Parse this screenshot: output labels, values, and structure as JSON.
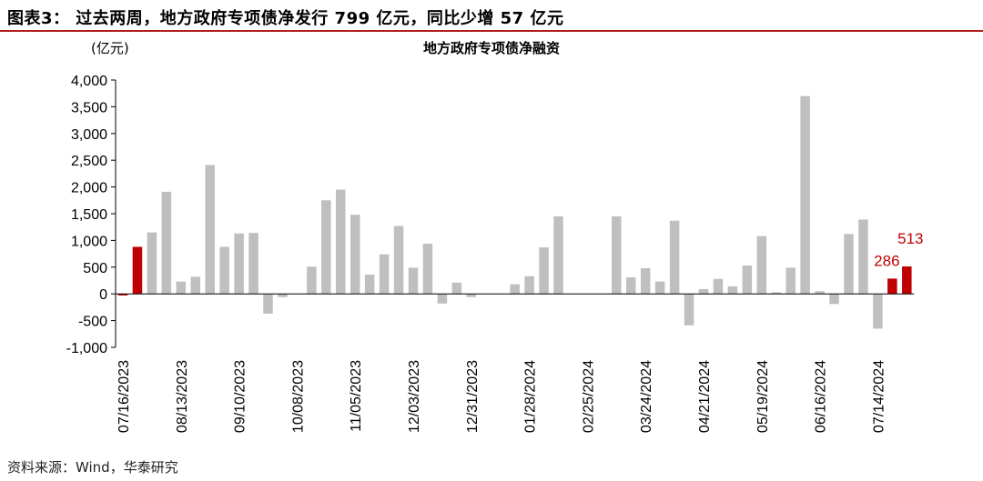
{
  "figure_title": "图表3：  过去两周，地方政府专项债净发行 799 亿元，同比少增 57 亿元",
  "unit_label": "(亿元)",
  "source": "资料来源：Wind，华泰研究",
  "colors": {
    "gray_bar": "#bfbfbf",
    "highlight_bar": "#c00000",
    "rule": "#b01c1c"
  },
  "chart_data": {
    "type": "bar",
    "title": "地方政府专项债净融资",
    "xlabel": "",
    "ylabel": "(亿元)",
    "ylim": [
      -1000,
      4000
    ],
    "yticks": [
      -1000,
      -500,
      0,
      500,
      1000,
      1500,
      2000,
      2500,
      3000,
      3500,
      4000
    ],
    "ytick_labels": [
      "-1,000",
      "-500",
      "0",
      "500",
      "1,000",
      "1,500",
      "2,000",
      "2,500",
      "3,000",
      "3,500",
      "4,000"
    ],
    "xtick_labels": [
      "07/16/2023",
      "08/13/2023",
      "09/10/2023",
      "10/08/2023",
      "11/05/2023",
      "12/03/2023",
      "12/31/2023",
      "01/28/2024",
      "02/25/2024",
      "03/24/2024",
      "04/21/2024",
      "05/19/2024",
      "06/16/2024",
      "07/14/2024"
    ],
    "xtick_every": 4,
    "values": [
      -30,
      880,
      1150,
      1910,
      230,
      320,
      2410,
      880,
      1130,
      1140,
      -370,
      -60,
      0,
      510,
      1750,
      1950,
      1480,
      360,
      740,
      1270,
      490,
      940,
      -180,
      210,
      -60,
      0,
      0,
      180,
      330,
      870,
      1450,
      0,
      0,
      0,
      1450,
      310,
      480,
      230,
      1370,
      -590,
      90,
      280,
      140,
      530,
      1080,
      30,
      490,
      3700,
      50,
      -190,
      1120,
      1390,
      -650,
      286,
      513
    ],
    "highlight_indices": [
      0,
      1,
      53,
      54
    ],
    "data_labels": [
      {
        "index": 53,
        "text": "286"
      },
      {
        "index": 54,
        "text": "513"
      }
    ],
    "grid": false,
    "legend": "none"
  }
}
